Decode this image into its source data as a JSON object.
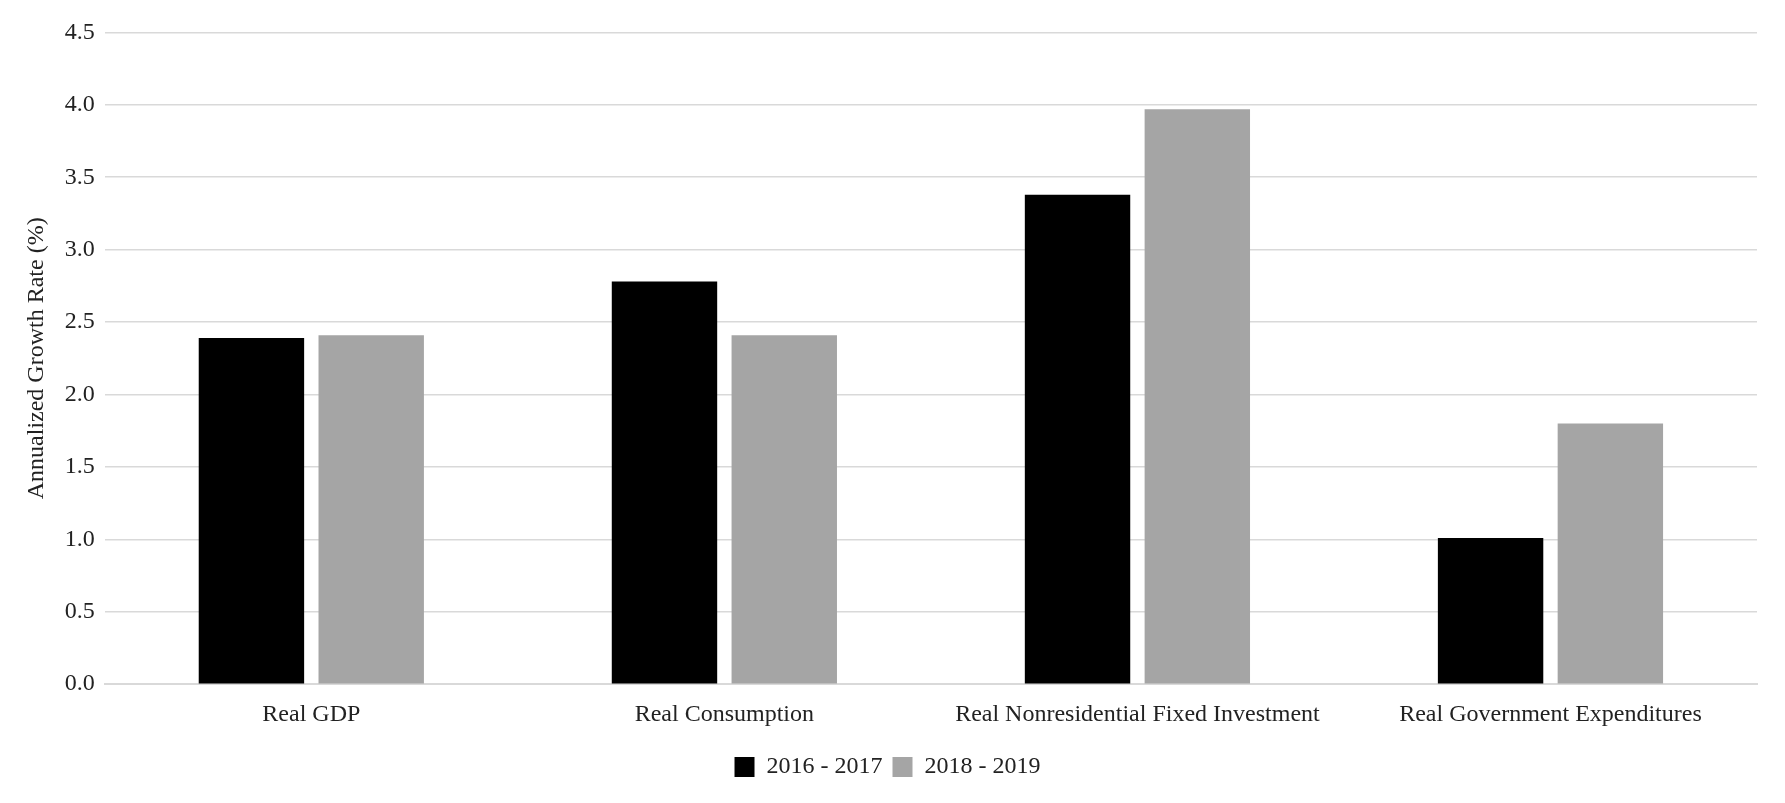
{
  "chart_data": {
    "type": "bar",
    "ylabel": "Annualized Growth Rate (%)",
    "categories": [
      "Real GDP",
      "Real Consumption",
      "Real Nonresidential Fixed Investment",
      "Real Government Expenditures"
    ],
    "series": [
      {
        "name": "2016 - 2017",
        "color": "#000000",
        "values": [
          2.39,
          2.78,
          3.38,
          1.01
        ]
      },
      {
        "name": "2018 - 2019",
        "color": "#a5a5a5",
        "values": [
          2.41,
          2.41,
          3.97,
          1.8
        ]
      }
    ],
    "ylim": [
      0,
      4.5
    ],
    "yticks": [
      {
        "value": 0,
        "label": "0.0"
      },
      {
        "value": 0.5,
        "label": "0.5"
      },
      {
        "value": 1,
        "label": "1.0"
      },
      {
        "value": 1.5,
        "label": "1.5"
      },
      {
        "value": 2,
        "label": "2.0"
      },
      {
        "value": 2.5,
        "label": "2.5"
      },
      {
        "value": 3,
        "label": "3.0"
      },
      {
        "value": 3.5,
        "label": "3.5"
      },
      {
        "value": 4,
        "label": "4.0"
      },
      {
        "value": 4.5,
        "label": "4.5"
      }
    ],
    "grid": "y",
    "legend": "bottom"
  }
}
